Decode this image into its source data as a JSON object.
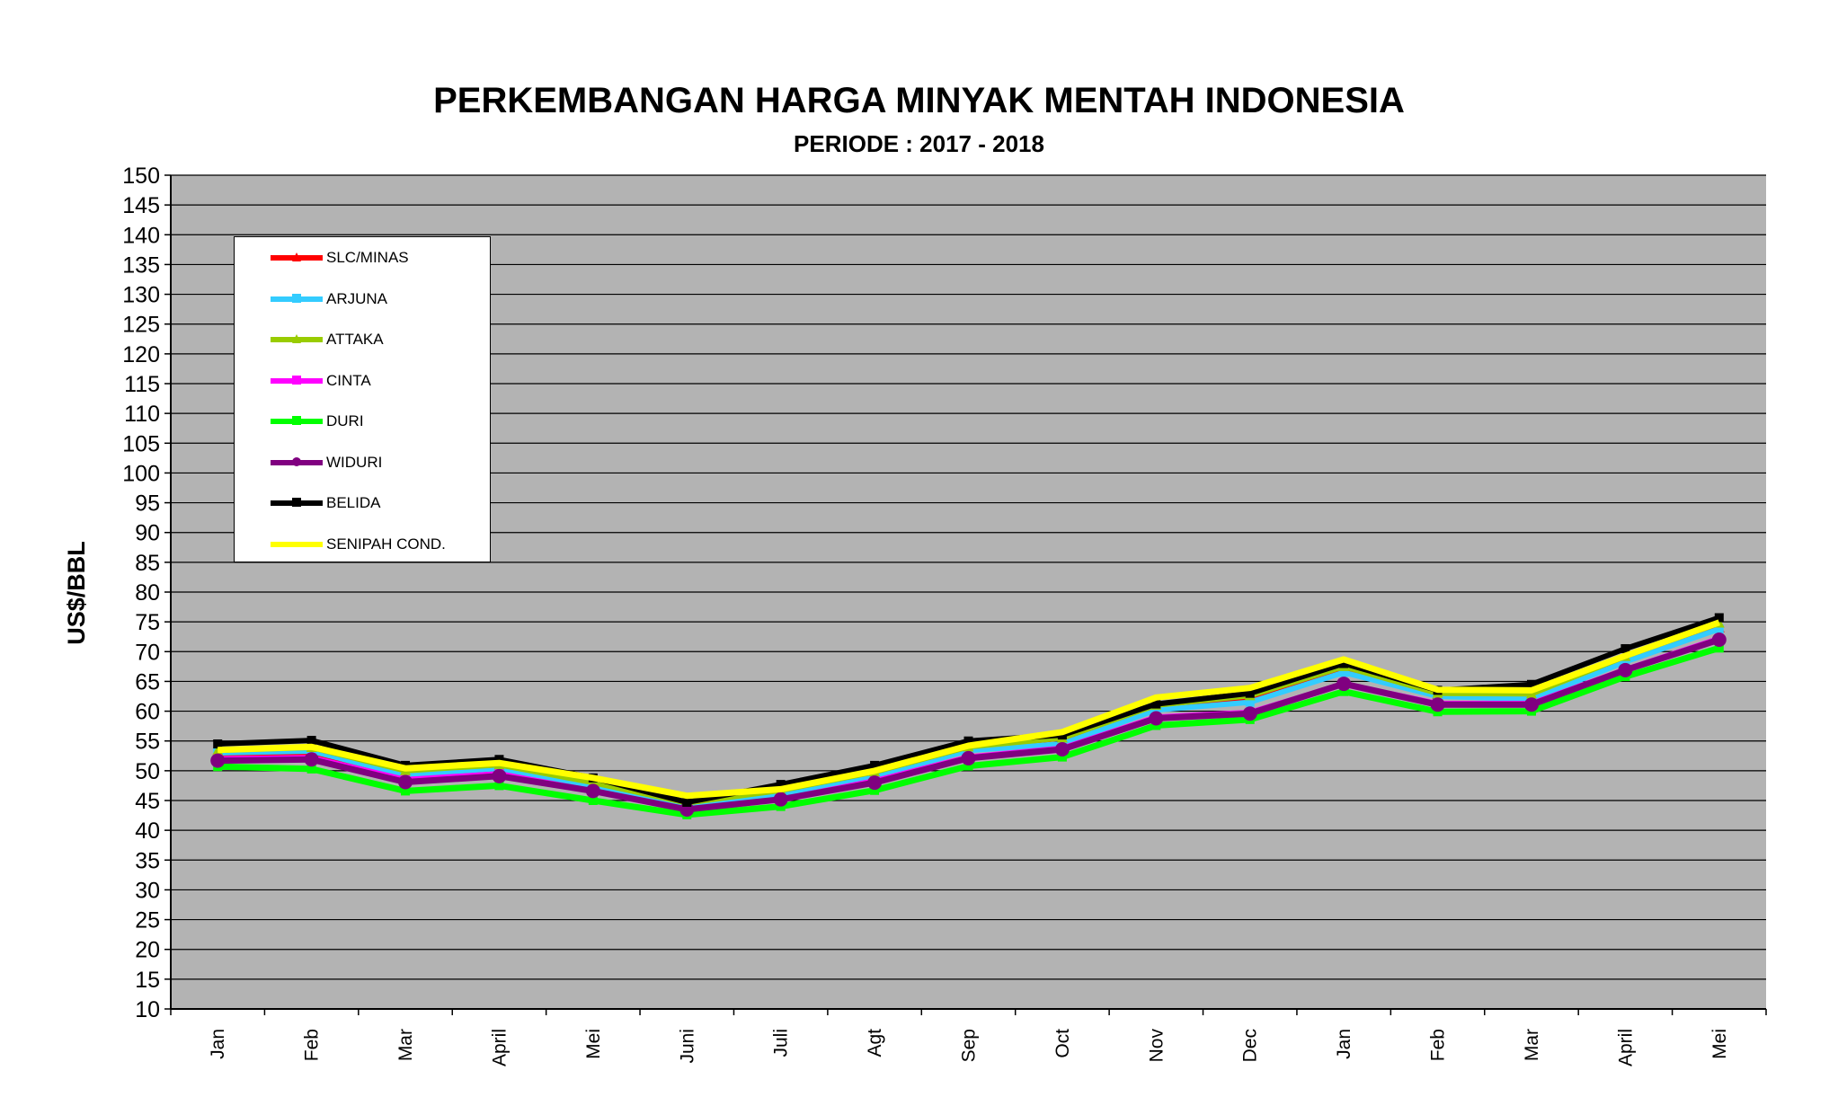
{
  "chart_data": {
    "type": "line",
    "title": "PERKEMBANGAN HARGA MINYAK MENTAH INDONESIA",
    "subtitle": "PERIODE : 2017 - 2018",
    "xlabel": "",
    "ylabel": "US$/BBL",
    "ylim": [
      10,
      150
    ],
    "yticks": [
      10,
      15,
      20,
      25,
      30,
      35,
      40,
      45,
      50,
      55,
      60,
      65,
      70,
      75,
      80,
      85,
      90,
      95,
      100,
      105,
      110,
      115,
      120,
      125,
      130,
      135,
      140,
      145,
      150
    ],
    "categories": [
      "Jan",
      "Feb",
      "Mar",
      "April",
      "Mei",
      "Juni",
      "Juli",
      "Agt",
      "Sep",
      "Oct",
      "Nov",
      "Dec",
      "Jan",
      "Feb",
      "Mar",
      "April",
      "Mei"
    ],
    "grid": true,
    "legend_position": "top-left",
    "background": "#b3b3b3",
    "series": [
      {
        "name": "SLC/MINAS",
        "color": "#ff0000",
        "marker": "triangle",
        "values": [
          52.6,
          53.0,
          48.9,
          50.0,
          47.4,
          44.3,
          46.0,
          49.3,
          53.8,
          55.5,
          60.7,
          62.3,
          67.0,
          62.8,
          62.8,
          69.0,
          74.0
        ]
      },
      {
        "name": "ARJUNA",
        "color": "#33ccff",
        "marker": "square",
        "values": [
          53.0,
          53.3,
          49.3,
          50.4,
          47.2,
          44.0,
          46.0,
          49.0,
          53.4,
          54.5,
          60.2,
          61.5,
          66.5,
          62.5,
          62.0,
          68.3,
          73.8
        ]
      },
      {
        "name": "ATTAKA",
        "color": "#99cc00",
        "marker": "triangle",
        "values": [
          53.4,
          53.9,
          50.0,
          51.0,
          48.0,
          44.6,
          46.7,
          49.8,
          54.0,
          55.5,
          61.0,
          62.6,
          67.5,
          63.0,
          62.9,
          69.2,
          74.8
        ]
      },
      {
        "name": "CINTA",
        "color": "#ff00ff",
        "marker": "square",
        "values": [
          52.0,
          52.2,
          48.5,
          49.5,
          46.6,
          43.4,
          45.2,
          48.3,
          52.3,
          53.8,
          59.0,
          59.8,
          64.6,
          61.3,
          61.3,
          67.0,
          72.2
        ]
      },
      {
        "name": "DURI",
        "color": "#00ff00",
        "marker": "square",
        "values": [
          50.7,
          50.3,
          46.6,
          47.5,
          45.0,
          42.6,
          44.0,
          46.7,
          50.8,
          52.3,
          57.6,
          58.6,
          63.3,
          59.9,
          60.0,
          65.8,
          70.6
        ]
      },
      {
        "name": "WIDURI",
        "color": "#800080",
        "marker": "circle",
        "values": [
          51.7,
          51.9,
          48.1,
          49.1,
          46.6,
          43.5,
          45.2,
          48.0,
          52.1,
          53.6,
          58.8,
          59.6,
          64.6,
          61.1,
          61.1,
          66.9,
          72.0
        ]
      },
      {
        "name": "BELIDA",
        "color": "#000000",
        "marker": "square",
        "values": [
          54.5,
          55.1,
          50.9,
          51.9,
          48.8,
          44.7,
          47.7,
          50.9,
          55.0,
          56.0,
          61.2,
          63.0,
          68.0,
          63.5,
          64.5,
          70.5,
          75.7
        ]
      },
      {
        "name": "SENIPAH COND.",
        "color": "#ffff00",
        "marker": "none",
        "values": [
          53.5,
          54.0,
          50.4,
          51.3,
          48.8,
          45.8,
          46.9,
          50.0,
          54.2,
          56.5,
          62.3,
          63.9,
          68.7,
          63.6,
          63.5,
          69.3,
          74.9
        ]
      }
    ]
  }
}
